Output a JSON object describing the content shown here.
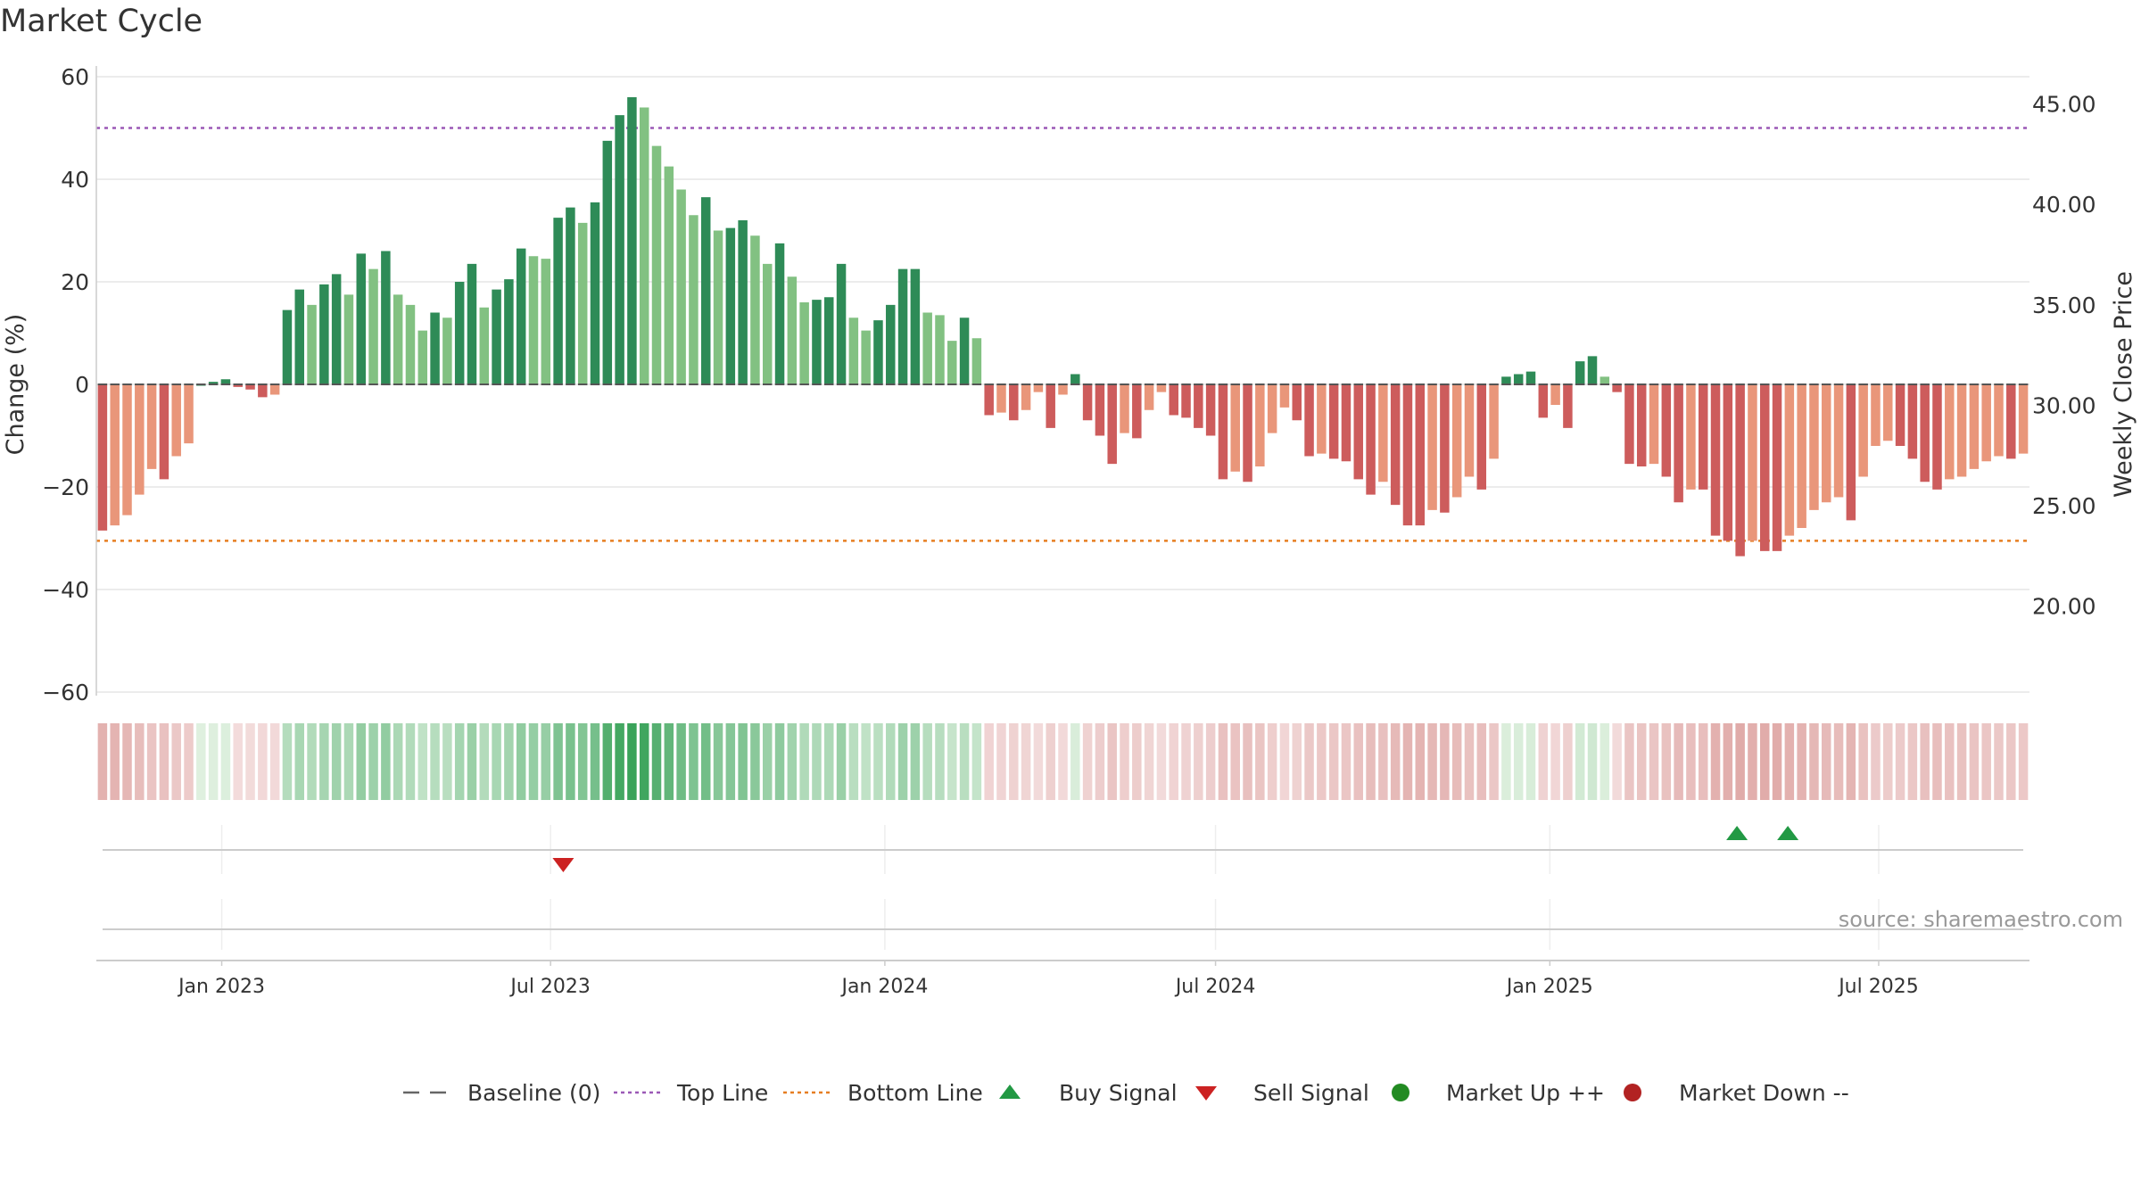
{
  "title": "Market Cycle",
  "source": "source: sharemaestro.com",
  "legend": [
    {
      "key": "baseline",
      "label": "Baseline (0)",
      "color": "#666666",
      "icon": "long-dash"
    },
    {
      "key": "top",
      "label": "Top Line",
      "color": "#9b59b6",
      "icon": "dotted"
    },
    {
      "key": "bottom",
      "label": "Bottom Line",
      "color": "#e67e22",
      "icon": "dotted"
    },
    {
      "key": "buy",
      "label": "Buy Signal",
      "color": "#229944",
      "icon": "triangle-up"
    },
    {
      "key": "sell",
      "label": "Sell Signal",
      "color": "#cc2222",
      "icon": "triangle-down"
    },
    {
      "key": "up",
      "label": "Market Up ++",
      "color": "#228b22",
      "icon": "circle"
    },
    {
      "key": "down",
      "label": "Market Down --",
      "color": "#b22222",
      "icon": "circle"
    }
  ],
  "colors": {
    "pos_dark": "#2e8b57",
    "pos_light": "#82c182",
    "neg_dark": "#cd5c5c",
    "neg_light": "#e9967a",
    "grid": "#e6e6e6",
    "axis": "#cccccc"
  },
  "chart_data": {
    "type": "bar",
    "ylabel_left": "Change (%)",
    "ylabel_right": "Weekly Close Price",
    "ylim_left": [
      -60,
      60
    ],
    "yticks_left": [
      60,
      40,
      20,
      0,
      -20,
      -40,
      -60
    ],
    "ylim_right": [
      15.72,
      46.36
    ],
    "yticks_right": [
      "45.00",
      "40.00",
      "35.00",
      "30.00",
      "25.00",
      "20.00"
    ],
    "x_start": "2022-10-24",
    "x_end": "2025-09-22",
    "xticks": [
      {
        "date": "2023-01-01",
        "label": "Jan 2023"
      },
      {
        "date": "2023-07-01",
        "label": "Jul 2023"
      },
      {
        "date": "2024-01-01",
        "label": "Jan 2024"
      },
      {
        "date": "2024-07-01",
        "label": "Jul 2024"
      },
      {
        "date": "2025-01-01",
        "label": "Jan 2025"
      },
      {
        "date": "2025-07-01",
        "label": "Jul 2025"
      }
    ],
    "top_line": 50,
    "bottom_line": -30.5,
    "baseline": 0,
    "weekly_change": [
      -28.5,
      -27.5,
      -25.5,
      -21.5,
      -16.5,
      -18.5,
      -14,
      -11.5,
      0,
      0.5,
      1,
      -0.5,
      -1,
      -2.5,
      -2,
      14.5,
      18.5,
      15.5,
      19.5,
      21.5,
      17.5,
      25.5,
      22.5,
      26,
      17.5,
      15.5,
      10.5,
      14,
      13,
      20,
      23.5,
      15,
      18.5,
      20.5,
      26.5,
      25,
      24.5,
      32.5,
      34.5,
      31.5,
      35.5,
      47.5,
      52.5,
      56,
      54,
      46.5,
      42.5,
      38,
      33,
      36.5,
      30,
      30.5,
      32,
      29,
      23.5,
      27.5,
      21,
      16,
      16.5,
      17,
      23.5,
      13,
      10.5,
      12.5,
      15.5,
      22.5,
      22.5,
      14,
      13.5,
      8.5,
      13,
      9,
      -6,
      -5.5,
      -7,
      -5,
      -1.5,
      -8.5,
      -2,
      2,
      -7,
      -10,
      -15.5,
      -9.5,
      -10.5,
      -5,
      -1.5,
      -6,
      -6.5,
      -8.5,
      -10,
      -18.5,
      -17,
      -19,
      -16,
      -9.5,
      -4.5,
      -7,
      -14,
      -13.5,
      -14.5,
      -15,
      -18.5,
      -21.5,
      -19,
      -23.5,
      -27.5,
      -27.5,
      -24.5,
      -25,
      -22,
      -18,
      -20.5,
      -14.5,
      1.5,
      2,
      2.5,
      -6.5,
      -4,
      -8.5,
      4.5,
      5.5,
      1.5,
      -1.5,
      -15.5,
      -16,
      -15.5,
      -18,
      -23,
      -20.5,
      -20.5,
      -29.5,
      -30.5,
      -33.5,
      -30.5,
      -32.5,
      -32.5,
      -29.5,
      -28,
      -24.5,
      -23,
      -22,
      -26.5,
      -18,
      -12,
      -11,
      -12,
      -14.5,
      -19,
      -20.5,
      -18.5,
      -18,
      -16.5,
      -15,
      -14,
      -14.5,
      -13.5
    ],
    "buy_signals": [
      "2025-04-14",
      "2025-05-12"
    ],
    "sell_signals": [
      "2023-07-08"
    ]
  }
}
